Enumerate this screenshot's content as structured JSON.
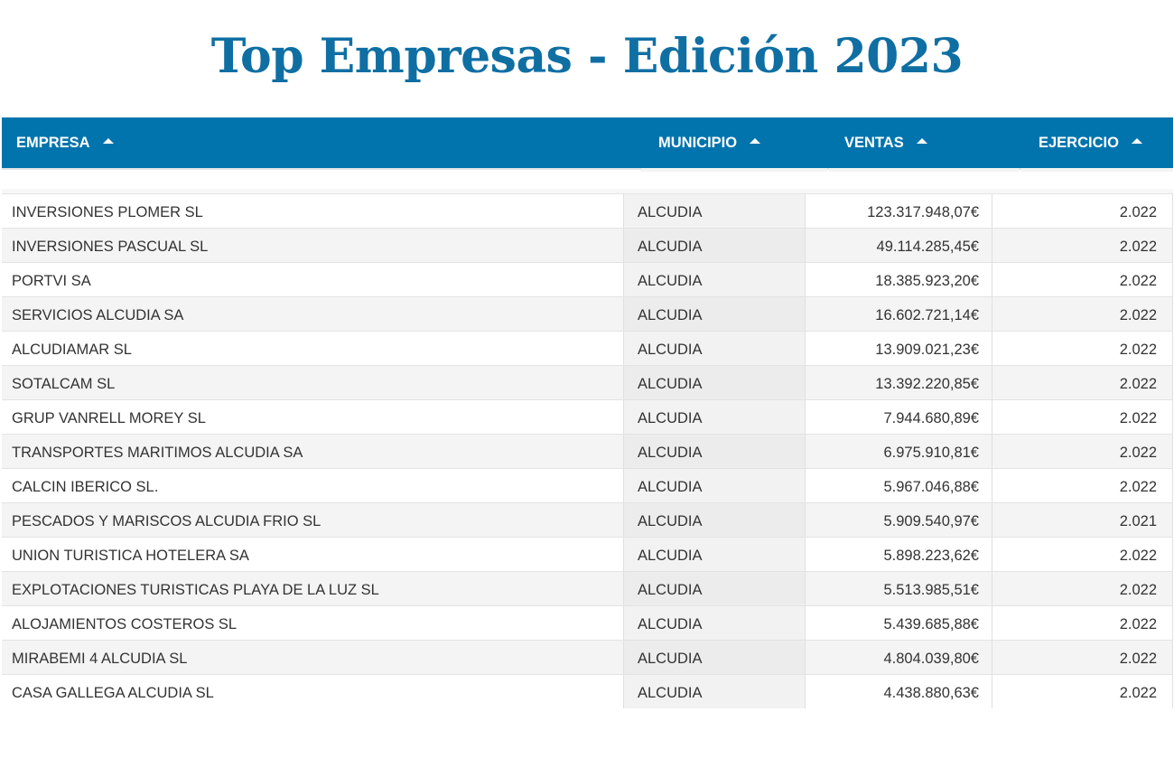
{
  "title": "Top Empresas - Edición 2023",
  "colors": {
    "accent": "#0274ad",
    "title": "#0f6fa3"
  },
  "columns": [
    {
      "key": "empresa",
      "label": "EMPRESA",
      "sort_icon": "sort-ascending-icon"
    },
    {
      "key": "municipio",
      "label": "MUNICIPIO",
      "sort_icon": "sort-ascending-icon"
    },
    {
      "key": "ventas",
      "label": "VENTAS",
      "sort_icon": "sort-ascending-icon"
    },
    {
      "key": "ejercicio",
      "label": "EJERCICIO",
      "sort_icon": "sort-ascending-icon"
    }
  ],
  "rows": [
    {
      "empresa": "INVERSIONES PLOMER SL",
      "municipio": "ALCUDIA",
      "ventas": "123.317.948,07€",
      "ejercicio": "2.022"
    },
    {
      "empresa": "INVERSIONES PASCUAL SL",
      "municipio": "ALCUDIA",
      "ventas": "49.114.285,45€",
      "ejercicio": "2.022"
    },
    {
      "empresa": "PORTVI SA",
      "municipio": "ALCUDIA",
      "ventas": "18.385.923,20€",
      "ejercicio": "2.022"
    },
    {
      "empresa": "SERVICIOS ALCUDIA SA",
      "municipio": "ALCUDIA",
      "ventas": "16.602.721,14€",
      "ejercicio": "2.022"
    },
    {
      "empresa": "ALCUDIAMAR SL",
      "municipio": "ALCUDIA",
      "ventas": "13.909.021,23€",
      "ejercicio": "2.022"
    },
    {
      "empresa": "SOTALCAM SL",
      "municipio": "ALCUDIA",
      "ventas": "13.392.220,85€",
      "ejercicio": "2.022"
    },
    {
      "empresa": "GRUP VANRELL MOREY SL",
      "municipio": "ALCUDIA",
      "ventas": "7.944.680,89€",
      "ejercicio": "2.022"
    },
    {
      "empresa": "TRANSPORTES MARITIMOS ALCUDIA SA",
      "municipio": "ALCUDIA",
      "ventas": "6.975.910,81€",
      "ejercicio": "2.022"
    },
    {
      "empresa": "CALCIN IBERICO SL.",
      "municipio": "ALCUDIA",
      "ventas": "5.967.046,88€",
      "ejercicio": "2.022"
    },
    {
      "empresa": "PESCADOS Y MARISCOS ALCUDIA FRIO SL",
      "municipio": "ALCUDIA",
      "ventas": "5.909.540,97€",
      "ejercicio": "2.021"
    },
    {
      "empresa": "UNION TURISTICA HOTELERA SA",
      "municipio": "ALCUDIA",
      "ventas": "5.898.223,62€",
      "ejercicio": "2.022"
    },
    {
      "empresa": "EXPLOTACIONES TURISTICAS PLAYA DE LA LUZ SL",
      "municipio": "ALCUDIA",
      "ventas": "5.513.985,51€",
      "ejercicio": "2.022"
    },
    {
      "empresa": "ALOJAMIENTOS COSTEROS SL",
      "municipio": "ALCUDIA",
      "ventas": "5.439.685,88€",
      "ejercicio": "2.022"
    },
    {
      "empresa": "MIRABEMI 4 ALCUDIA SL",
      "municipio": "ALCUDIA",
      "ventas": "4.804.039,80€",
      "ejercicio": "2.022"
    },
    {
      "empresa": "CASA GALLEGA ALCUDIA SL",
      "municipio": "ALCUDIA",
      "ventas": "4.438.880,63€",
      "ejercicio": "2.022"
    }
  ]
}
